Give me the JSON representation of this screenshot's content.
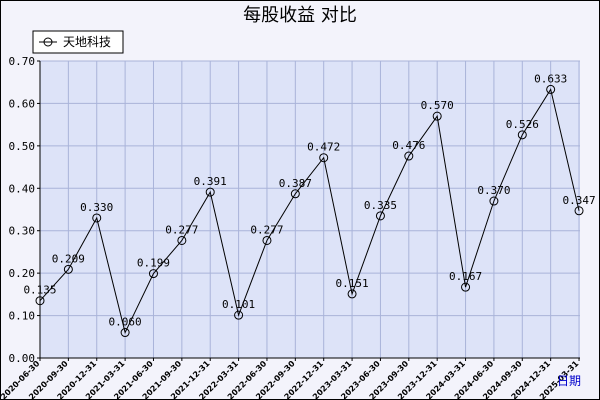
{
  "chart_data": {
    "type": "line",
    "title": "每股收益  对比",
    "xlabel": "日期",
    "ylabel": "",
    "ylim": [
      0,
      0.7
    ],
    "yticks": [
      "0.00",
      "0.10",
      "0.20",
      "0.30",
      "0.40",
      "0.50",
      "0.60",
      "0.70"
    ],
    "grid": true,
    "legend": "top-left",
    "x": [
      "2020-06-30",
      "2020-09-30",
      "2020-12-31",
      "2021-03-31",
      "2021-06-30",
      "2021-09-30",
      "2021-12-31",
      "2022-03-31",
      "2022-06-30",
      "2022-09-30",
      "2022-12-31",
      "2023-03-31",
      "2023-06-30",
      "2023-09-30",
      "2023-12-31",
      "2024-03-31",
      "2024-06-30",
      "2024-09-30",
      "2024-12-31",
      "2025-03-31"
    ],
    "series": [
      {
        "name": "天地科技",
        "values": [
          0.135,
          0.209,
          0.33,
          0.06,
          0.199,
          0.277,
          0.391,
          0.101,
          0.277,
          0.387,
          0.472,
          0.151,
          0.335,
          0.476,
          0.57,
          0.167,
          0.37,
          0.526,
          0.633,
          0.347
        ],
        "labels": [
          "0.135",
          "0.209",
          "0.330",
          "0.060",
          "0.199",
          "0.277",
          "0.391",
          "0.101",
          "0.277",
          "0.387",
          "0.472",
          "0.151",
          "0.335",
          "0.476",
          "0.570",
          "0.167",
          "0.370",
          "0.526",
          "0.633",
          "0.347"
        ],
        "color": "#000000"
      }
    ],
    "colors": {
      "plot_background": "#dde3f8",
      "grid": "#a9b3d9",
      "frame_background": "#f3f3fb"
    }
  }
}
